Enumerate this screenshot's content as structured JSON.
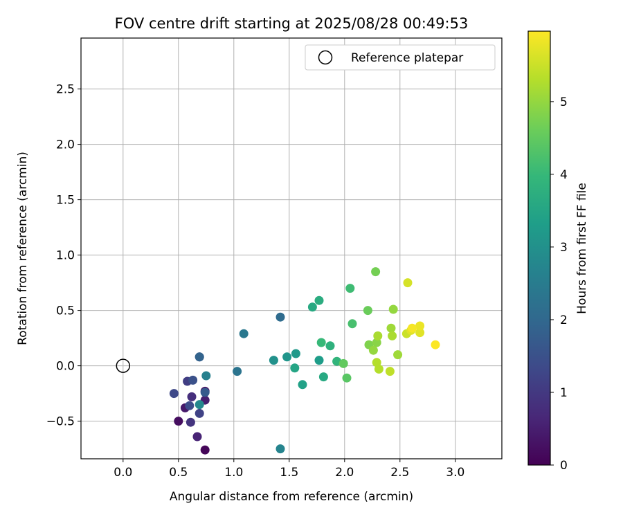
{
  "chart_data": {
    "type": "scatter",
    "title": "FOV centre drift starting at 2025/08/28 00:49:53",
    "xlabel": "Angular distance from reference (arcmin)",
    "ylabel": "Rotation from reference (arcmin)",
    "xlim": [
      -0.38,
      3.42
    ],
    "ylim": [
      -0.84,
      2.96
    ],
    "xticks": [
      0.0,
      0.5,
      1.0,
      1.5,
      2.0,
      2.5,
      3.0
    ],
    "xtick_labels": [
      "0.0",
      "0.5",
      "1.0",
      "1.5",
      "2.0",
      "2.5",
      "3.0"
    ],
    "yticks": [
      -0.5,
      0.0,
      0.5,
      1.0,
      1.5,
      2.0,
      2.5
    ],
    "ytick_labels": [
      "−0.5",
      "0.0",
      "0.5",
      "1.0",
      "1.5",
      "2.0",
      "2.5"
    ],
    "grid": true,
    "legend": {
      "location": "upper right",
      "entries": [
        "Reference platepar"
      ]
    },
    "reference_point": {
      "x": 0.0,
      "y": 0.0
    },
    "colorbar": {
      "label": "Hours from first FF file",
      "colormap": "viridis",
      "range": [
        0,
        5.97
      ],
      "ticks": [
        0,
        1,
        2,
        3,
        4,
        5
      ],
      "tick_labels": [
        "0",
        "1",
        "2",
        "3",
        "4",
        "5"
      ]
    },
    "colormap_stops": [
      "#440154",
      "#482878",
      "#3e4989",
      "#31688e",
      "#26828e",
      "#1f9e89",
      "#35b779",
      "#6ece58",
      "#b5de2b",
      "#fde725"
    ],
    "points": [
      {
        "x": 0.74,
        "y": -0.76,
        "h": 0.1
      },
      {
        "x": 0.5,
        "y": -0.5,
        "h": 0.2
      },
      {
        "x": 0.74,
        "y": -0.23,
        "h": 0.3
      },
      {
        "x": 0.56,
        "y": -0.38,
        "h": 0.4
      },
      {
        "x": 0.74,
        "y": -0.31,
        "h": 0.5
      },
      {
        "x": 0.67,
        "y": -0.64,
        "h": 0.6
      },
      {
        "x": 0.62,
        "y": -0.28,
        "h": 0.8
      },
      {
        "x": 0.61,
        "y": -0.51,
        "h": 0.9
      },
      {
        "x": 0.69,
        "y": 0.08,
        "h": 1.0
      },
      {
        "x": 0.58,
        "y": -0.14,
        "h": 1.1
      },
      {
        "x": 0.69,
        "y": -0.43,
        "h": 1.2
      },
      {
        "x": 0.46,
        "y": -0.25,
        "h": 1.3
      },
      {
        "x": 0.6,
        "y": -0.36,
        "h": 1.4
      },
      {
        "x": 0.63,
        "y": -0.13,
        "h": 1.5
      },
      {
        "x": 0.74,
        "y": -0.24,
        "h": 1.7
      },
      {
        "x": 0.69,
        "y": 0.08,
        "h": 1.9
      },
      {
        "x": 1.42,
        "y": 0.44,
        "h": 2.1
      },
      {
        "x": 1.03,
        "y": -0.05,
        "h": 2.3
      },
      {
        "x": 1.09,
        "y": 0.29,
        "h": 2.4
      },
      {
        "x": 0.75,
        "y": -0.09,
        "h": 2.6
      },
      {
        "x": 1.42,
        "y": -0.75,
        "h": 2.7
      },
      {
        "x": 0.69,
        "y": -0.35,
        "h": 2.8
      },
      {
        "x": 1.36,
        "y": 0.05,
        "h": 3.0
      },
      {
        "x": 1.48,
        "y": 0.08,
        "h": 3.1
      },
      {
        "x": 1.56,
        "y": 0.11,
        "h": 3.2
      },
      {
        "x": 1.77,
        "y": 0.05,
        "h": 3.3
      },
      {
        "x": 1.62,
        "y": -0.17,
        "h": 3.4
      },
      {
        "x": 1.55,
        "y": -0.02,
        "h": 3.5
      },
      {
        "x": 1.81,
        "y": -0.1,
        "h": 3.6
      },
      {
        "x": 1.71,
        "y": 0.53,
        "h": 3.6
      },
      {
        "x": 1.77,
        "y": 0.59,
        "h": 3.7
      },
      {
        "x": 1.87,
        "y": 0.18,
        "h": 3.8
      },
      {
        "x": 1.93,
        "y": 0.04,
        "h": 3.9
      },
      {
        "x": 1.79,
        "y": 0.21,
        "h": 4.0
      },
      {
        "x": 2.05,
        "y": 0.7,
        "h": 4.1
      },
      {
        "x": 2.07,
        "y": 0.38,
        "h": 4.2
      },
      {
        "x": 2.02,
        "y": -0.11,
        "h": 4.4
      },
      {
        "x": 1.99,
        "y": 0.02,
        "h": 4.5
      },
      {
        "x": 2.21,
        "y": 0.5,
        "h": 4.6
      },
      {
        "x": 2.28,
        "y": 0.85,
        "h": 4.7
      },
      {
        "x": 2.22,
        "y": 0.19,
        "h": 4.8
      },
      {
        "x": 2.29,
        "y": 0.21,
        "h": 4.9
      },
      {
        "x": 2.26,
        "y": 0.14,
        "h": 5.0
      },
      {
        "x": 2.44,
        "y": 0.51,
        "h": 5.0
      },
      {
        "x": 2.42,
        "y": 0.34,
        "h": 5.1
      },
      {
        "x": 2.48,
        "y": 0.1,
        "h": 5.1
      },
      {
        "x": 2.3,
        "y": 0.27,
        "h": 5.2
      },
      {
        "x": 2.43,
        "y": 0.27,
        "h": 5.2
      },
      {
        "x": 2.29,
        "y": 0.03,
        "h": 5.3
      },
      {
        "x": 2.31,
        "y": -0.03,
        "h": 5.3
      },
      {
        "x": 2.41,
        "y": -0.05,
        "h": 5.4
      },
      {
        "x": 2.56,
        "y": 0.29,
        "h": 5.5
      },
      {
        "x": 2.57,
        "y": 0.75,
        "h": 5.6
      },
      {
        "x": 2.6,
        "y": 0.32,
        "h": 5.7
      },
      {
        "x": 2.68,
        "y": 0.3,
        "h": 5.7
      },
      {
        "x": 2.68,
        "y": 0.36,
        "h": 5.8
      },
      {
        "x": 2.61,
        "y": 0.34,
        "h": 5.9
      },
      {
        "x": 2.82,
        "y": 0.19,
        "h": 5.95
      }
    ]
  }
}
